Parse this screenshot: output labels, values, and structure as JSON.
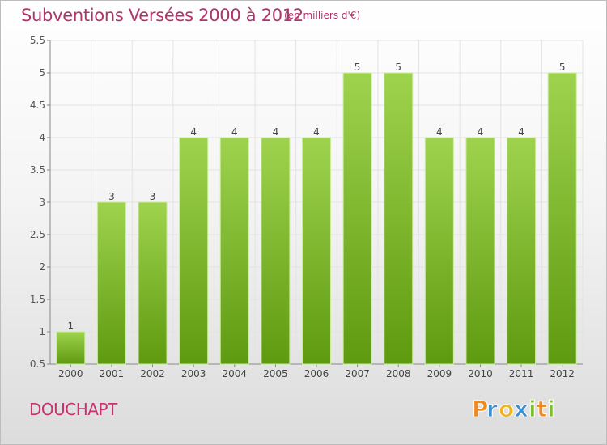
{
  "title": "Subventions Versées 2000 à 2012",
  "subtitle": "(en milliers d'€)",
  "location": "DOUCHAPT",
  "logo_text": "Proxiti",
  "colors": {
    "title": "#b0336b",
    "bar_top": "#9fd34e",
    "bar_bottom": "#5e9a10",
    "logo_p": "#f08a1c",
    "logo_r": "#3a8fd0",
    "logo_o": "#f0b41c",
    "logo_x": "#3a8fd0",
    "logo_i": "#7bbf2a"
  },
  "chart_data": {
    "type": "bar",
    "title": "Subventions Versées 2000 à 2012",
    "subtitle": "(en milliers d'€)",
    "xlabel": "",
    "ylabel": "",
    "categories": [
      "2000",
      "2001",
      "2002",
      "2003",
      "2004",
      "2005",
      "2006",
      "2007",
      "2008",
      "2009",
      "2010",
      "2011",
      "2012"
    ],
    "values": [
      1,
      3,
      3,
      4,
      4,
      4,
      4,
      5,
      5,
      4,
      4,
      4,
      5
    ],
    "data_labels": [
      "1",
      "3",
      "3",
      "4",
      "4",
      "4",
      "4",
      "5",
      "5",
      "4",
      "4",
      "4",
      "5"
    ],
    "ylim": [
      0.5,
      5.5
    ],
    "yticks": [
      "0.5",
      "1",
      "1.5",
      "2",
      "2.5",
      "3",
      "3.5",
      "4",
      "4.5",
      "5",
      "5.5"
    ],
    "grid": true
  }
}
